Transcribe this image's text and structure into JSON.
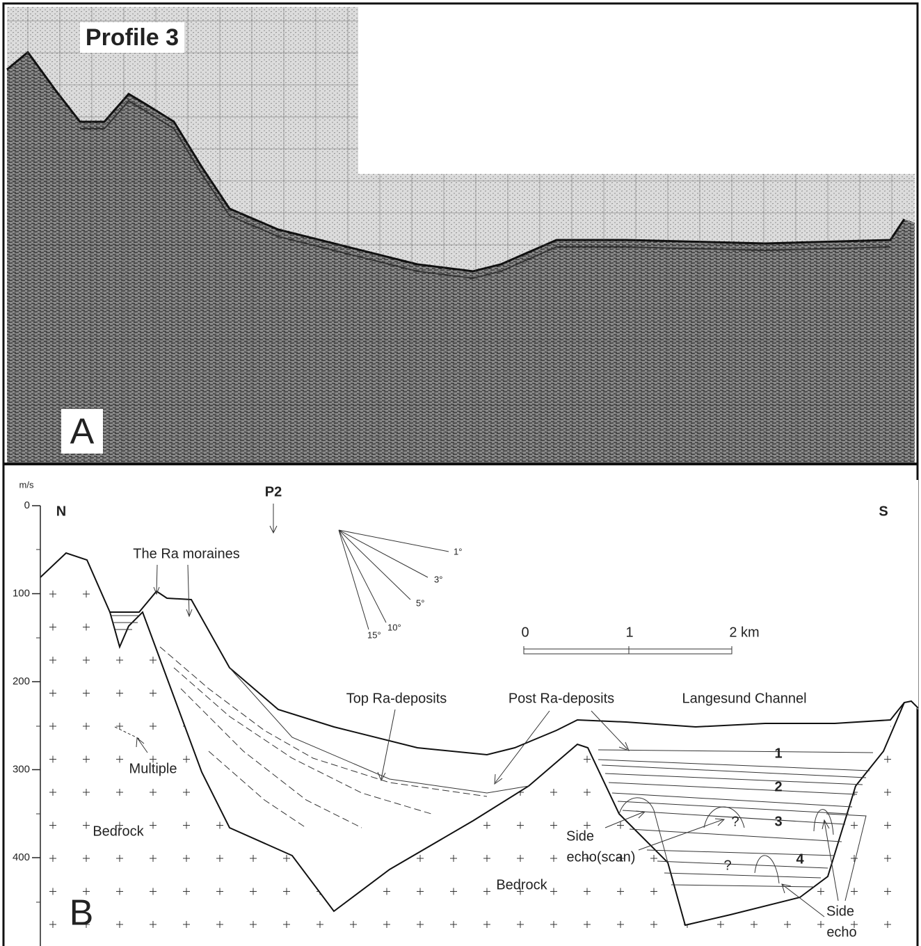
{
  "panel_a": {
    "title": "Profile 3",
    "letter": "A"
  },
  "panel_b": {
    "letter": "B",
    "depth_axis": {
      "unit": "m/s",
      "ticks": [
        0,
        100,
        200,
        300,
        400
      ]
    },
    "north": "N",
    "south": "S",
    "p2": "P2",
    "moraines": "The Ra moraines",
    "angles": [
      "1°",
      "3°",
      "5°",
      "10°",
      "15°"
    ],
    "scale_bar": [
      "0",
      "1",
      "2 km"
    ],
    "top_ra": "Top Ra-deposits",
    "post_ra": "Post Ra-deposits",
    "channel": "Langesund Channel",
    "multiple": "Multiple",
    "bedrock": [
      "Bedrock",
      "Bedrock"
    ],
    "units": [
      "1",
      "2",
      "3",
      "4"
    ],
    "questions": [
      "?",
      "?"
    ],
    "side_echo_scan": [
      "Side",
      "echo(scan)"
    ],
    "side_echo": [
      "Side",
      "echo"
    ]
  }
}
